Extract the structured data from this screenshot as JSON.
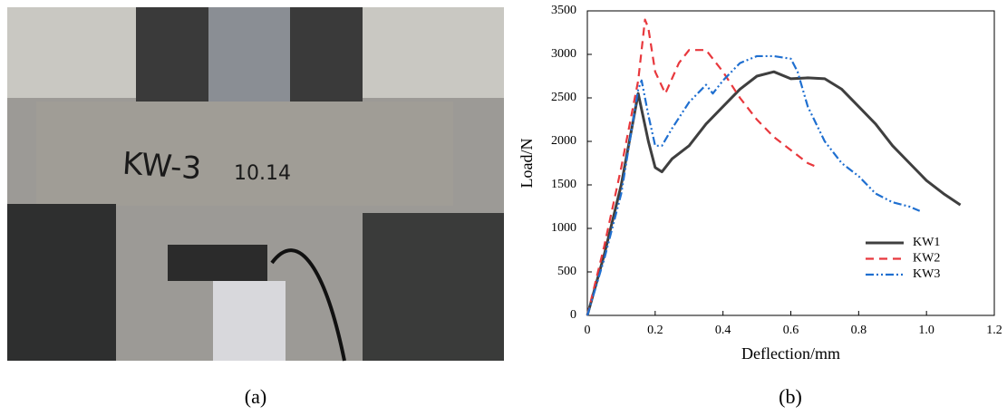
{
  "photo": {
    "texts": [
      "KW-3",
      "10.14"
    ]
  },
  "panel_labels": [
    "(a)",
    "(b)"
  ],
  "chart_data": {
    "type": "line",
    "xlabel": "Deflection/mm",
    "ylabel": "Load/N",
    "xlim": [
      0,
      1.2
    ],
    "ylim": [
      0,
      3500
    ],
    "xticks": [
      0,
      0.2,
      0.4,
      0.6,
      0.8,
      {
        "value": 1,
        "label": "1.0"
      },
      1.2
    ],
    "yticks": [
      0,
      500,
      1000,
      1500,
      2000,
      2500,
      3000,
      3500
    ],
    "legend": "lower right",
    "series": [
      {
        "name": "KW1",
        "color": "#3f3f3f",
        "dash": "solid",
        "x": [
          0,
          0.05,
          0.1,
          0.15,
          0.18,
          0.2,
          0.22,
          0.25,
          0.3,
          0.35,
          0.4,
          0.45,
          0.5,
          0.55,
          0.6,
          0.65,
          0.7,
          0.75,
          0.8,
          0.85,
          0.9,
          0.95,
          1.0,
          1.05,
          1.1
        ],
        "values": [
          0,
          700,
          1500,
          2550,
          2000,
          1700,
          1650,
          1800,
          1950,
          2200,
          2400,
          2600,
          2750,
          2800,
          2720,
          2730,
          2720,
          2600,
          2400,
          2200,
          1950,
          1750,
          1550,
          1400,
          1270
        ]
      },
      {
        "name": "KW2",
        "color": "#e8383d",
        "dash": "dashed",
        "x": [
          0,
          0.05,
          0.1,
          0.15,
          0.17,
          0.18,
          0.2,
          0.23,
          0.27,
          0.3,
          0.35,
          0.4,
          0.45,
          0.5,
          0.55,
          0.6,
          0.65,
          0.68
        ],
        "values": [
          0,
          800,
          1700,
          2700,
          3400,
          3300,
          2800,
          2550,
          2900,
          3050,
          3050,
          2800,
          2500,
          2250,
          2050,
          1900,
          1750,
          1700
        ]
      },
      {
        "name": "KW3",
        "color": "#1f6fd0",
        "dash": "dashdot",
        "x": [
          0,
          0.05,
          0.1,
          0.15,
          0.16,
          0.18,
          0.2,
          0.22,
          0.25,
          0.3,
          0.35,
          0.37,
          0.4,
          0.45,
          0.5,
          0.55,
          0.6,
          0.62,
          0.65,
          0.7,
          0.75,
          0.8,
          0.85,
          0.9,
          0.95,
          0.98
        ],
        "values": [
          0,
          650,
          1400,
          2600,
          2700,
          2300,
          1950,
          1950,
          2150,
          2450,
          2650,
          2550,
          2700,
          2900,
          2980,
          2980,
          2950,
          2800,
          2400,
          2000,
          1750,
          1600,
          1400,
          1300,
          1250,
          1200
        ]
      }
    ]
  }
}
